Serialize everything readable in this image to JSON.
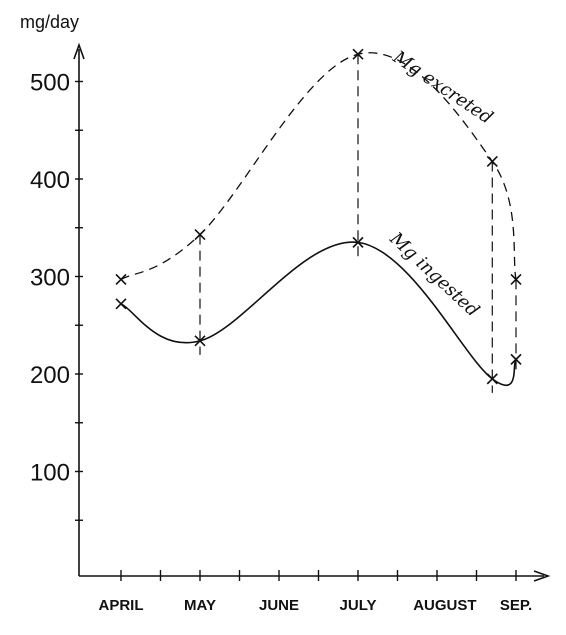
{
  "chart_data": {
    "type": "line",
    "title": "",
    "ylabel": "mg/day",
    "xlabel": "",
    "categories": [
      "APRIL",
      "MAY",
      "JUNE",
      "JULY",
      "AUGUST",
      "SEP."
    ],
    "ylim": [
      0,
      530
    ],
    "yticks": [
      100,
      200,
      300,
      400,
      500
    ],
    "grid": false,
    "series": [
      {
        "name": "Mg excreted",
        "style": "dashed",
        "points": [
          {
            "x": 0.0,
            "y": 297
          },
          {
            "x": 1.0,
            "y": 343
          },
          {
            "x": 3.0,
            "y": 528
          },
          {
            "x": 4.7,
            "y": 418
          },
          {
            "x": 5.0,
            "y": 297
          }
        ]
      },
      {
        "name": "Mg ingested",
        "style": "solid",
        "points": [
          {
            "x": 0.0,
            "y": 272
          },
          {
            "x": 1.0,
            "y": 234
          },
          {
            "x": 3.0,
            "y": 335
          },
          {
            "x": 4.7,
            "y": 195
          },
          {
            "x": 5.0,
            "y": 215
          }
        ]
      }
    ],
    "paired_connectors": [
      1.0,
      3.0,
      4.7,
      5.0
    ]
  }
}
